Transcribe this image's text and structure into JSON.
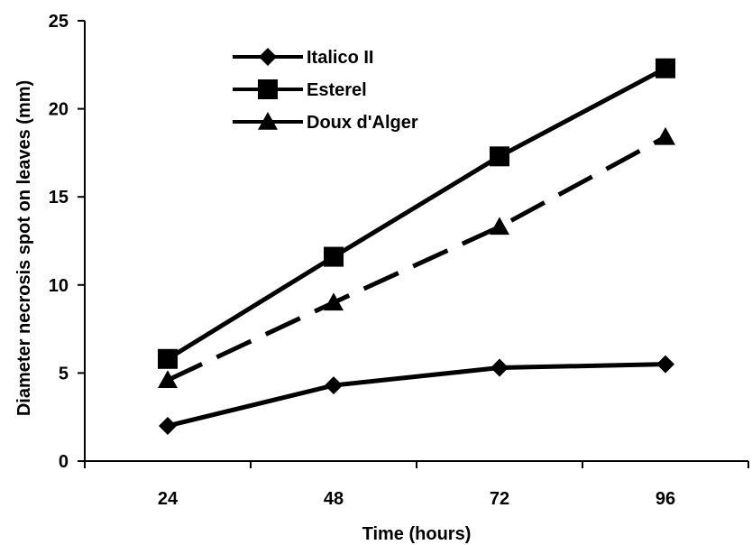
{
  "chart_data": {
    "type": "line",
    "title": "",
    "xlabel": "Time (hours)",
    "ylabel": "Diameter  necrosis spot on leaves (mm)",
    "categories": [
      "24",
      "48",
      "72",
      "96"
    ],
    "ylim": [
      0,
      25
    ],
    "yticks": [
      "0",
      "5",
      "10",
      "15",
      "20",
      "25"
    ],
    "grid": false,
    "legend_position": "top-left",
    "series": [
      {
        "name": "Italico II",
        "values": [
          2.0,
          4.3,
          5.3,
          5.5
        ],
        "marker": "diamond",
        "line_style": "solid",
        "color": "#000000"
      },
      {
        "name": "Esterel",
        "values": [
          5.8,
          11.6,
          17.3,
          22.3
        ],
        "marker": "square",
        "line_style": "solid",
        "color": "#000000"
      },
      {
        "name": "Doux d'Alger",
        "values": [
          4.6,
          9.0,
          13.3,
          18.4
        ],
        "marker": "triangle",
        "line_style": "dashed",
        "color": "#000000"
      }
    ]
  }
}
